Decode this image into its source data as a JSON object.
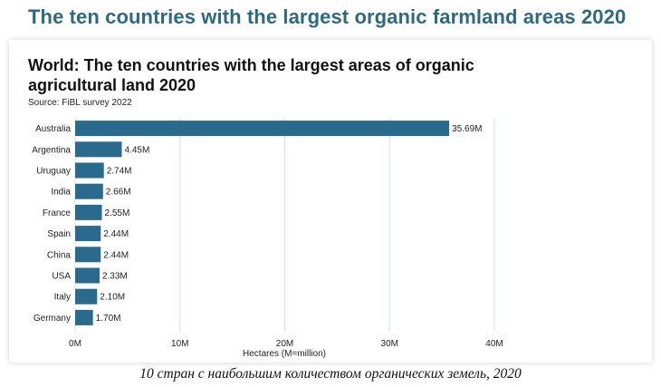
{
  "page": {
    "heading": "The ten countries with the largest organic farmland areas 2020",
    "caption": "10 стран с наибольшим количеством органических земель, 2020"
  },
  "colors": {
    "heading": "#2d6a80",
    "bar": "#2a6a8c",
    "grid": "#cfe3ee"
  },
  "chart_data": {
    "type": "bar",
    "orientation": "horizontal",
    "title": "World: The ten countries with the largest areas of organic agricultural land 2020",
    "subtitle": "Source: FiBL survey 2022",
    "xlabel": "Hectares (M=million)",
    "ylabel": "",
    "xlim": [
      0,
      40
    ],
    "xticks": [
      0,
      10,
      20,
      30,
      40
    ],
    "xtick_labels": [
      "0M",
      "10M",
      "20M",
      "30M",
      "40M"
    ],
    "grid": true,
    "categories": [
      "Australia",
      "Argentina",
      "Uruguay",
      "India",
      "France",
      "Spain",
      "China",
      "USA",
      "Italy",
      "Germany"
    ],
    "values": [
      35.69,
      4.45,
      2.74,
      2.66,
      2.55,
      2.44,
      2.44,
      2.33,
      2.1,
      1.7
    ],
    "value_labels": [
      "35.69M",
      "4.45M",
      "2.74M",
      "2.66M",
      "2.55M",
      "2.44M",
      "2.44M",
      "2.33M",
      "2.10M",
      "1.70M"
    ]
  }
}
